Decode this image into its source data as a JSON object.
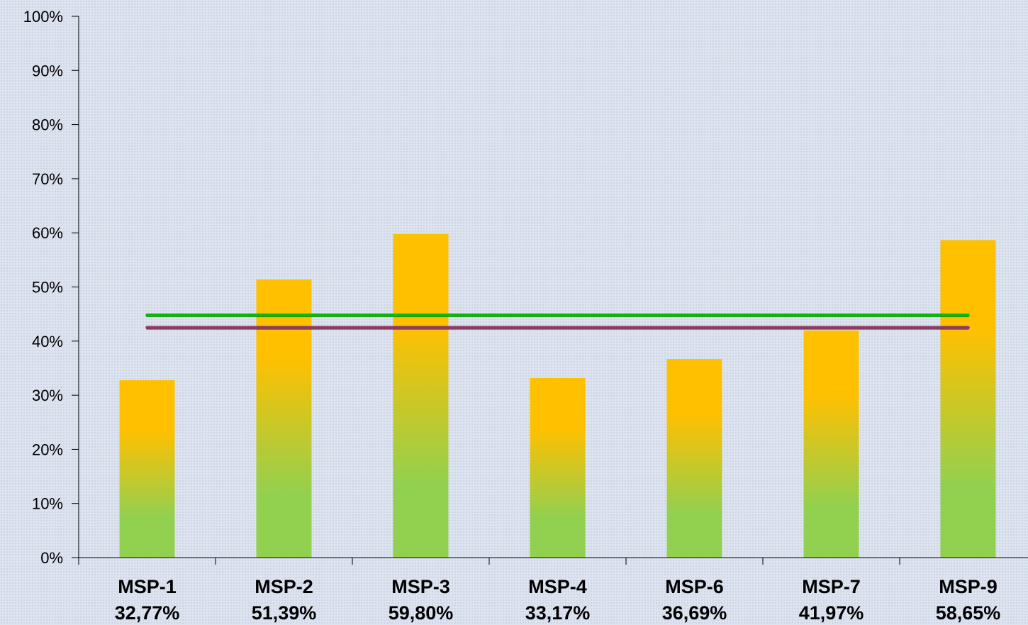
{
  "chart_data": {
    "type": "bar",
    "categories": [
      "MSP-1",
      "MSP-2",
      "MSP-3",
      "MSP-4",
      "MSP-6",
      "MSP-7",
      "MSP-9"
    ],
    "value_labels": [
      "32,77%",
      "51,39%",
      "59,80%",
      "33,17%",
      "36,69%",
      "41,97%",
      "58,65%"
    ],
    "values": [
      32.77,
      51.39,
      59.8,
      33.17,
      36.69,
      41.97,
      58.65
    ],
    "ylim": [
      0,
      100
    ],
    "y_ticks": [
      0,
      10,
      20,
      30,
      40,
      50,
      60,
      70,
      80,
      90,
      100
    ],
    "y_tick_labels": [
      "0%",
      "10%",
      "20%",
      "30%",
      "40%",
      "50%",
      "60%",
      "70%",
      "80%",
      "90%",
      "100%"
    ],
    "reference_lines": [
      {
        "value": 44.8,
        "color": "#00c000"
      },
      {
        "value": 42.5,
        "color": "#8b3a62"
      }
    ],
    "bar_gradient": {
      "top": "#ffc000",
      "bottom": "#92d050"
    },
    "grid": false,
    "legend": "none"
  }
}
